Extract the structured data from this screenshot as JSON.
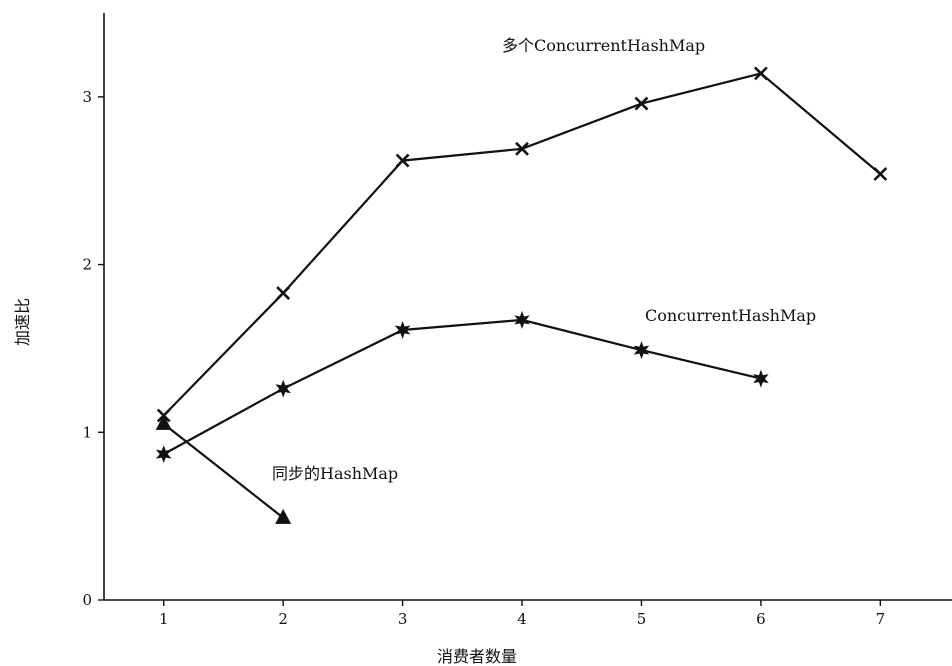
{
  "chart_data": {
    "type": "line",
    "title": "",
    "xlabel": "消费者数量",
    "ylabel": "加速比",
    "x_ticks": [
      "1",
      "2",
      "3",
      "4",
      "5",
      "6",
      "7"
    ],
    "y_ticks": [
      "0",
      "1",
      "2",
      "3"
    ],
    "xlim": [
      0.5,
      7.6
    ],
    "ylim": [
      0,
      3.5
    ],
    "grid": false,
    "series": [
      {
        "name": "多个ConcurrentHashMap",
        "marker": "x",
        "color": "#111111",
        "x": [
          1,
          2,
          3,
          4,
          5,
          6,
          7
        ],
        "y": [
          1.1,
          1.83,
          2.62,
          2.69,
          2.96,
          3.14,
          2.54
        ]
      },
      {
        "name": "ConcurrentHashMap",
        "marker": "star",
        "color": "#111111",
        "x": [
          1,
          2,
          3,
          4,
          5,
          6
        ],
        "y": [
          0.87,
          1.26,
          1.61,
          1.67,
          1.49,
          1.32
        ]
      },
      {
        "name": "同步的HashMap",
        "marker": "triangle",
        "color": "#111111",
        "x": [
          1,
          2
        ],
        "y": [
          1.05,
          0.49
        ]
      }
    ]
  }
}
